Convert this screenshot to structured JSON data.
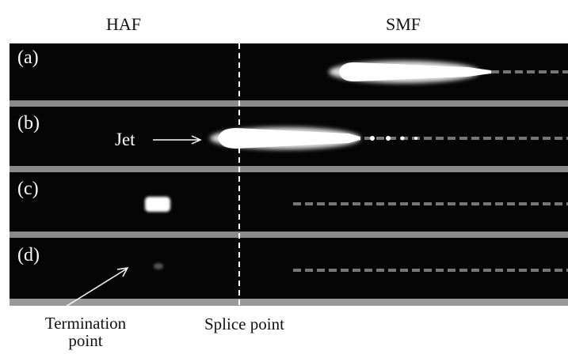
{
  "column_labels": [
    "HAF",
    "SMF"
  ],
  "panels": [
    "(a)",
    "(b)",
    "(c)",
    "(d)"
  ],
  "annotations": {
    "jet": "Jet",
    "termination_point": "Termination point",
    "splice_point": "Splice point"
  }
}
